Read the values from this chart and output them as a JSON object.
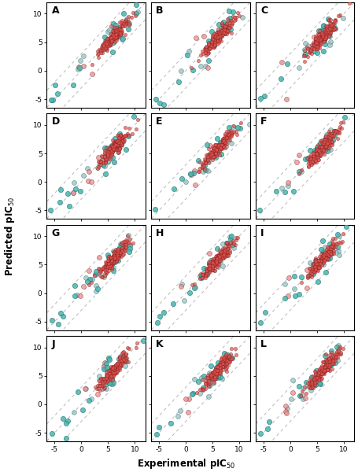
{
  "panels": [
    "A",
    "B",
    "C",
    "D",
    "E",
    "F",
    "G",
    "H",
    "I",
    "J",
    "K",
    "L"
  ],
  "xlim": [
    -6.5,
    12
  ],
  "ylim": [
    -6.5,
    12
  ],
  "xticks": [
    -5,
    0,
    5,
    10
  ],
  "yticks": [
    -5,
    0,
    5,
    10
  ],
  "xlabel": "Experimental pIC$_{50}$",
  "ylabel": "Predicted pIC$_{50}$",
  "color_red": "#d9534f",
  "color_pink": "#e89090",
  "color_teal": "#48b5b0",
  "color_gray": "#9bbfbf",
  "dline_color": "#b8b8b8",
  "seed": 42,
  "main_cluster_x_mean": 6.0,
  "main_cluster_x_std": 1.5,
  "main_cluster_noise": 0.6,
  "n_red": 180,
  "n_teal_cluster": 20,
  "n_gray_cluster": 15
}
